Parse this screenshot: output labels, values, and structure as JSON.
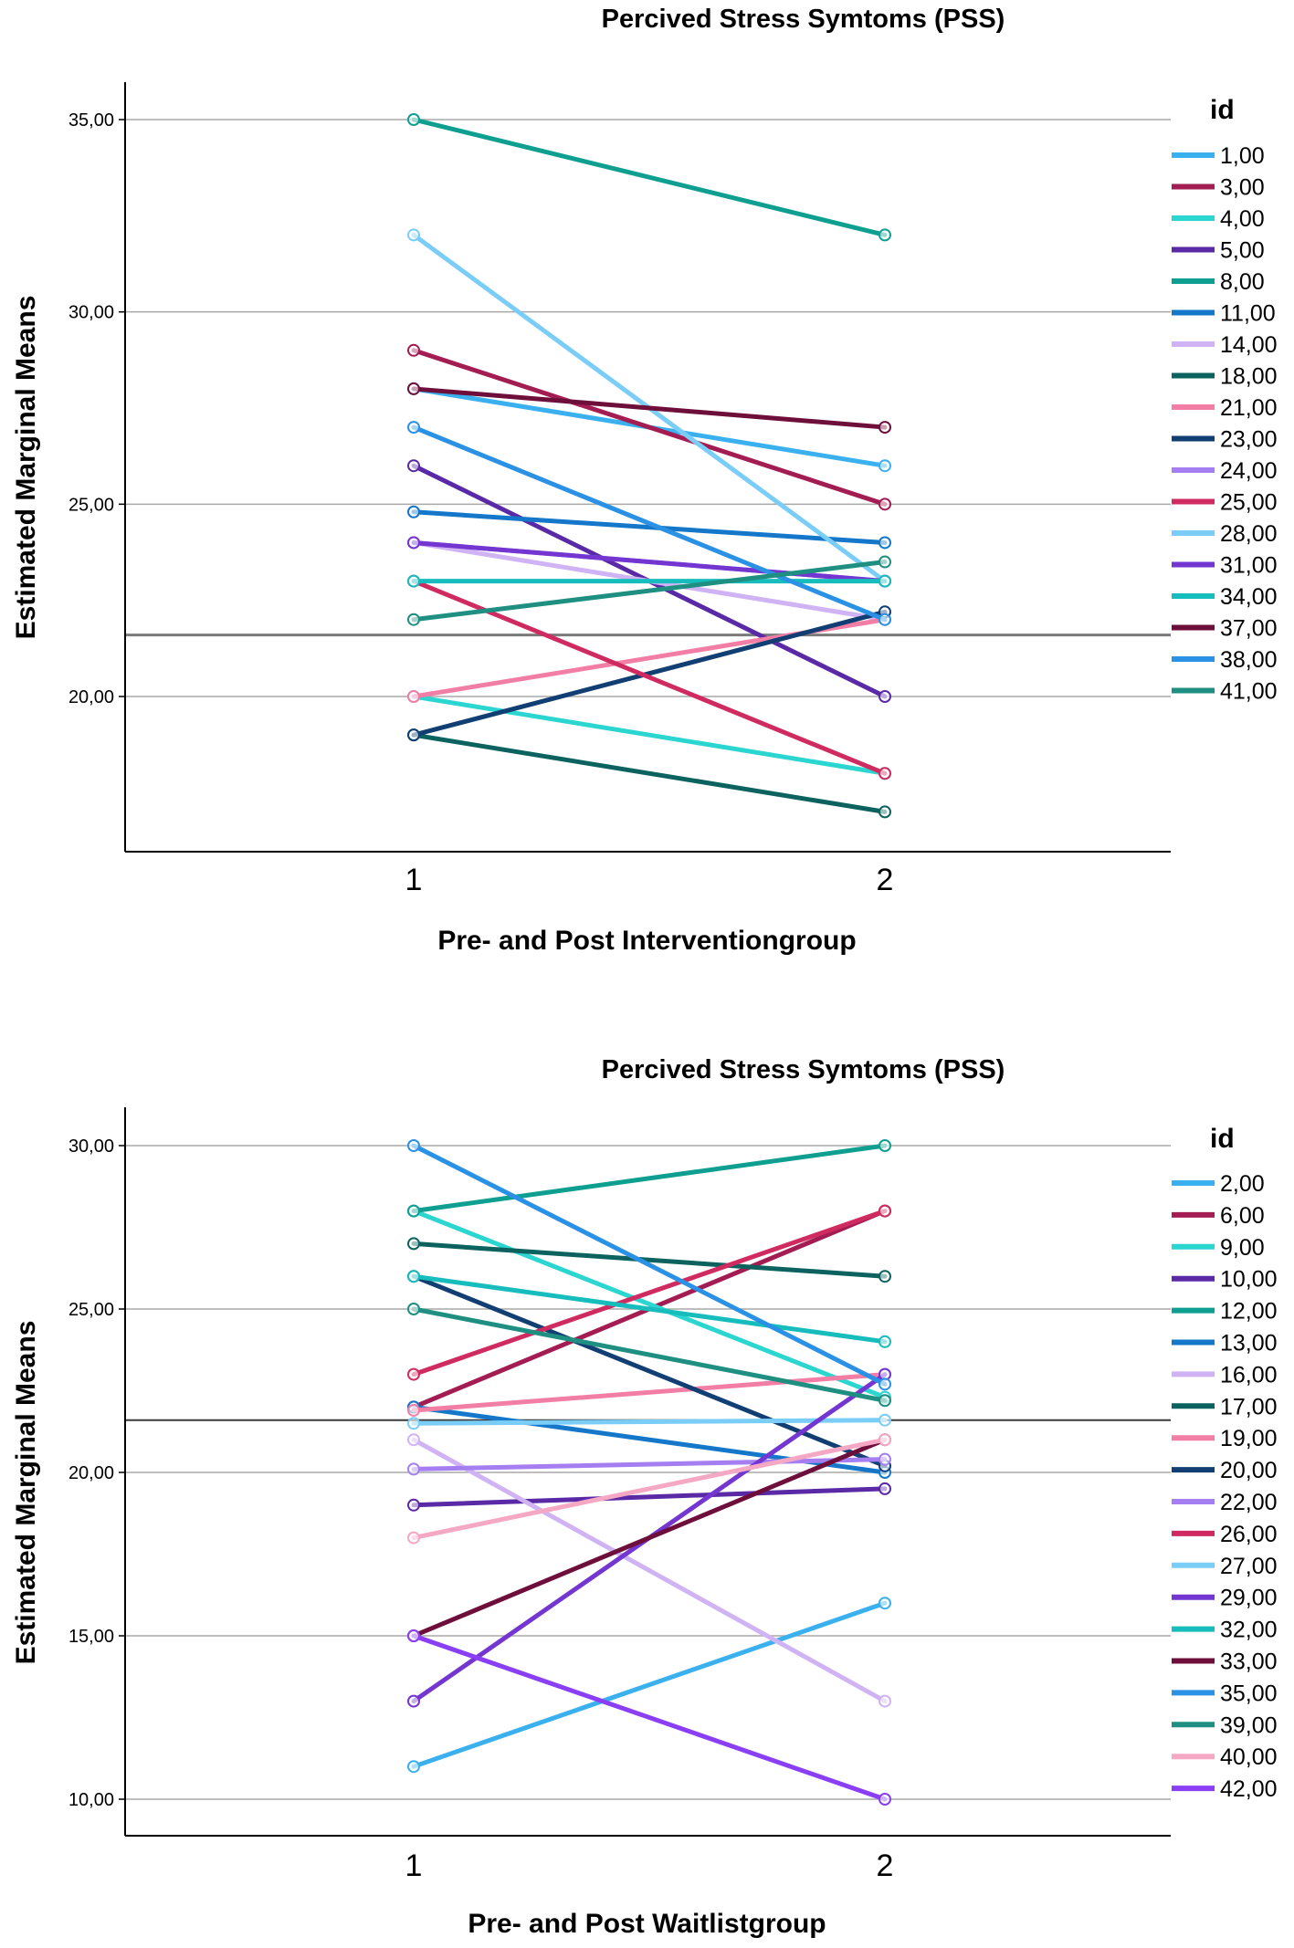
{
  "chart_data": [
    {
      "type": "line",
      "title": "Percived Stress Symtoms (PSS)",
      "xlabel": "Pre- and Post Interventiongroup",
      "ylabel": "Estimated Marginal Means",
      "x": [
        "1",
        "2"
      ],
      "yticks": [
        "20,00",
        "25,00",
        "30,00",
        "35,00"
      ],
      "ylim": [
        16.3,
        36.2
      ],
      "reference_line": 21.6,
      "legend_title": "id",
      "series": [
        {
          "name": "1,00",
          "color": "#3ab0ef",
          "values": [
            28,
            26
          ]
        },
        {
          "name": "3,00",
          "color": "#a31c52",
          "values": [
            29,
            25
          ]
        },
        {
          "name": "4,00",
          "color": "#2cd6d0",
          "values": [
            20,
            18
          ]
        },
        {
          "name": "5,00",
          "color": "#5a29a6",
          "values": [
            26,
            20
          ]
        },
        {
          "name": "8,00",
          "color": "#0f9f91",
          "values": [
            35,
            32
          ]
        },
        {
          "name": "11,00",
          "color": "#1577c9",
          "values": [
            24.8,
            24
          ]
        },
        {
          "name": "14,00",
          "color": "#d0b3f4",
          "values": [
            24,
            22
          ]
        },
        {
          "name": "18,00",
          "color": "#0c625e",
          "values": [
            19,
            17
          ]
        },
        {
          "name": "21,00",
          "color": "#f27ea6",
          "values": [
            20,
            22
          ]
        },
        {
          "name": "23,00",
          "color": "#123f73",
          "values": [
            19,
            22.2
          ]
        },
        {
          "name": "24,00",
          "color": "#a57ef2",
          "values": [
            24,
            23
          ]
        },
        {
          "name": "25,00",
          "color": "#d02b60",
          "values": [
            23,
            18
          ]
        },
        {
          "name": "28,00",
          "color": "#79cdf7",
          "values": [
            32,
            23
          ]
        },
        {
          "name": "31,00",
          "color": "#7436d1",
          "values": [
            24,
            23
          ]
        },
        {
          "name": "34,00",
          "color": "#17bcbc",
          "values": [
            23,
            23
          ]
        },
        {
          "name": "37,00",
          "color": "#6e0f3b",
          "values": [
            28,
            27
          ]
        },
        {
          "name": "38,00",
          "color": "#2a91e4",
          "values": [
            27,
            22
          ]
        },
        {
          "name": "41,00",
          "color": "#1e8f81",
          "values": [
            22,
            23.5
          ]
        }
      ]
    },
    {
      "type": "line",
      "title": "Percived Stress Symtoms (PSS)",
      "xlabel": "Pre- and Post Waitlistgroup",
      "ylabel": "Estimated Marginal Means",
      "x": [
        "1",
        "2"
      ],
      "yticks": [
        "10,00",
        "15,00",
        "20,00",
        "25,00",
        "30,00"
      ],
      "ylim": [
        8.9,
        31.1
      ],
      "reference_line": 21.6,
      "legend_title": "id",
      "series": [
        {
          "name": "2,00",
          "color": "#3ab0ef",
          "values": [
            11,
            16
          ]
        },
        {
          "name": "6,00",
          "color": "#a31c52",
          "values": [
            22,
            28
          ]
        },
        {
          "name": "9,00",
          "color": "#2cd6d0",
          "values": [
            28,
            22.3
          ]
        },
        {
          "name": "10,00",
          "color": "#5a29a6",
          "values": [
            19,
            19.5
          ]
        },
        {
          "name": "12,00",
          "color": "#0f9f91",
          "values": [
            28,
            30
          ]
        },
        {
          "name": "13,00",
          "color": "#1577c9",
          "values": [
            22,
            20
          ]
        },
        {
          "name": "16,00",
          "color": "#d0b3f4",
          "values": [
            21,
            13
          ]
        },
        {
          "name": "17,00",
          "color": "#0c625e",
          "values": [
            27,
            26
          ]
        },
        {
          "name": "19,00",
          "color": "#f27ea6",
          "values": [
            21.9,
            23
          ]
        },
        {
          "name": "20,00",
          "color": "#123f73",
          "values": [
            26,
            20.2
          ]
        },
        {
          "name": "22,00",
          "color": "#a57ef2",
          "values": [
            20.1,
            20.4
          ]
        },
        {
          "name": "26,00",
          "color": "#d02b60",
          "values": [
            23,
            28
          ]
        },
        {
          "name": "27,00",
          "color": "#79cdf7",
          "values": [
            21.5,
            21.6
          ]
        },
        {
          "name": "29,00",
          "color": "#7436d1",
          "values": [
            13,
            23
          ]
        },
        {
          "name": "32,00",
          "color": "#17bcbc",
          "values": [
            26,
            24
          ]
        },
        {
          "name": "33,00",
          "color": "#6e0f3b",
          "values": [
            15,
            21
          ]
        },
        {
          "name": "35,00",
          "color": "#2a91e4",
          "values": [
            30,
            22.7
          ]
        },
        {
          "name": "39,00",
          "color": "#1e8f81",
          "values": [
            25,
            22.2
          ]
        },
        {
          "name": "40,00",
          "color": "#f5a8c4",
          "values": [
            18,
            21
          ]
        },
        {
          "name": "42,00",
          "color": "#8a3ff5",
          "values": [
            15,
            10
          ]
        }
      ]
    }
  ]
}
